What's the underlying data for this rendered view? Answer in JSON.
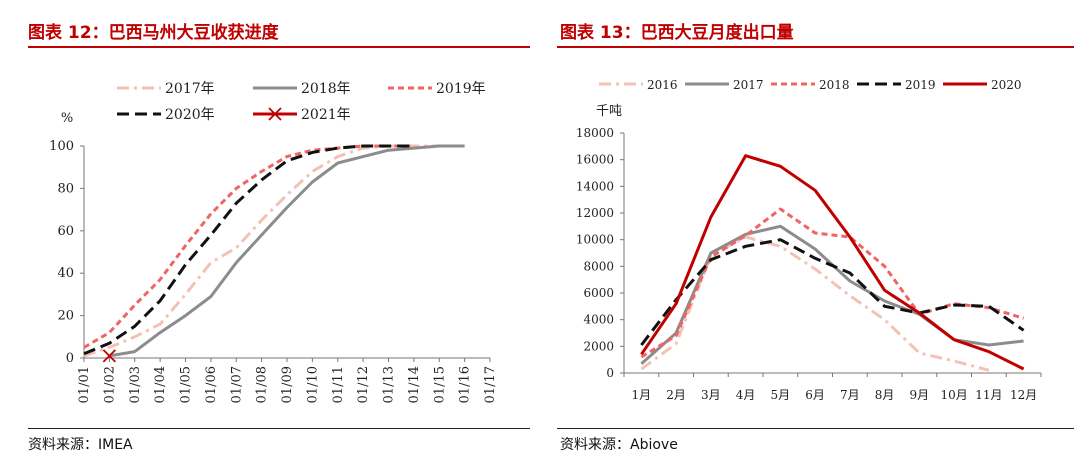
{
  "left": {
    "title": "图表 12：巴西马州大豆收获进度",
    "source": "资料来源：IMEA",
    "chart_data": {
      "type": "line",
      "ylabel": "%",
      "ylim": [
        0,
        100
      ],
      "yticks": [
        0,
        20,
        40,
        60,
        80,
        100
      ],
      "categories": [
        "01/01",
        "01/02",
        "01/03",
        "01/04",
        "01/05",
        "01/06",
        "01/07",
        "01/08",
        "01/09",
        "01/10",
        "01/11",
        "01/12",
        "01/13",
        "01/14",
        "01/15",
        "01/16",
        "01/17"
      ],
      "legend_position": "top",
      "series": [
        {
          "name": "2017年",
          "color": "#f4c2b4",
          "dash": "dashdot",
          "values": [
            1,
            5,
            10,
            16,
            30,
            45,
            52,
            65,
            77,
            88,
            95,
            99,
            100,
            100,
            100,
            null,
            null
          ]
        },
        {
          "name": "2018年",
          "color": "#8c8c8c",
          "dash": "solid",
          "values": [
            null,
            1,
            3,
            12,
            20,
            29,
            45,
            58,
            71,
            83,
            92,
            95,
            98,
            99,
            100,
            100,
            null
          ]
        },
        {
          "name": "2019年",
          "color": "#ef6464",
          "dash": "dash",
          "values": [
            5,
            12,
            25,
            37,
            53,
            68,
            80,
            88,
            95,
            98,
            99,
            100,
            100,
            100,
            null,
            null,
            null
          ]
        },
        {
          "name": "2020年",
          "color": "#111111",
          "dash": "longdash",
          "values": [
            2,
            7,
            15,
            27,
            44,
            58,
            73,
            84,
            93,
            97,
            99,
            100,
            100,
            100,
            null,
            null,
            null
          ]
        },
        {
          "name": "2021年",
          "color": "#c00000",
          "dash": "solid",
          "marker": "x",
          "values": [
            null,
            1,
            null,
            null,
            null,
            null,
            null,
            null,
            null,
            null,
            null,
            null,
            null,
            null,
            null,
            null,
            null
          ]
        }
      ]
    }
  },
  "right": {
    "title": "图表 13：巴西大豆月度出口量",
    "source": "资料来源：Abiove",
    "chart_data": {
      "type": "line",
      "ylabel": "千吨",
      "ylim": [
        0,
        18000
      ],
      "yticks": [
        0,
        2000,
        4000,
        6000,
        8000,
        10000,
        12000,
        14000,
        16000,
        18000
      ],
      "categories": [
        "1月",
        "2月",
        "3月",
        "4月",
        "5月",
        "6月",
        "7月",
        "8月",
        "9月",
        "10月",
        "11月",
        "12月"
      ],
      "legend_position": "top",
      "series": [
        {
          "name": "2016",
          "color": "#f4c2b4",
          "dash": "dashdot",
          "values": [
            300,
            2200,
            8800,
            10200,
            9500,
            7800,
            5800,
            4000,
            1500,
            900,
            200,
            null
          ]
        },
        {
          "name": "2017",
          "color": "#8c8c8c",
          "dash": "solid",
          "values": [
            700,
            3000,
            9000,
            10400,
            11000,
            9300,
            6900,
            5400,
            4400,
            2500,
            2100,
            2400
          ]
        },
        {
          "name": "2018",
          "color": "#ef6464",
          "dash": "dash",
          "values": [
            1200,
            2800,
            8700,
            10300,
            12300,
            10500,
            10200,
            8000,
            4400,
            5200,
            4900,
            4100
          ]
        },
        {
          "name": "2019",
          "color": "#111111",
          "dash": "longdash",
          "values": [
            2100,
            5500,
            8500,
            9500,
            10000,
            8600,
            7500,
            5000,
            4500,
            5100,
            5000,
            3200
          ]
        },
        {
          "name": "2020",
          "color": "#c00000",
          "dash": "solid",
          "values": [
            1400,
            5200,
            11700,
            16300,
            15500,
            13700,
            10200,
            6200,
            4500,
            2500,
            1600,
            300
          ]
        }
      ]
    }
  }
}
